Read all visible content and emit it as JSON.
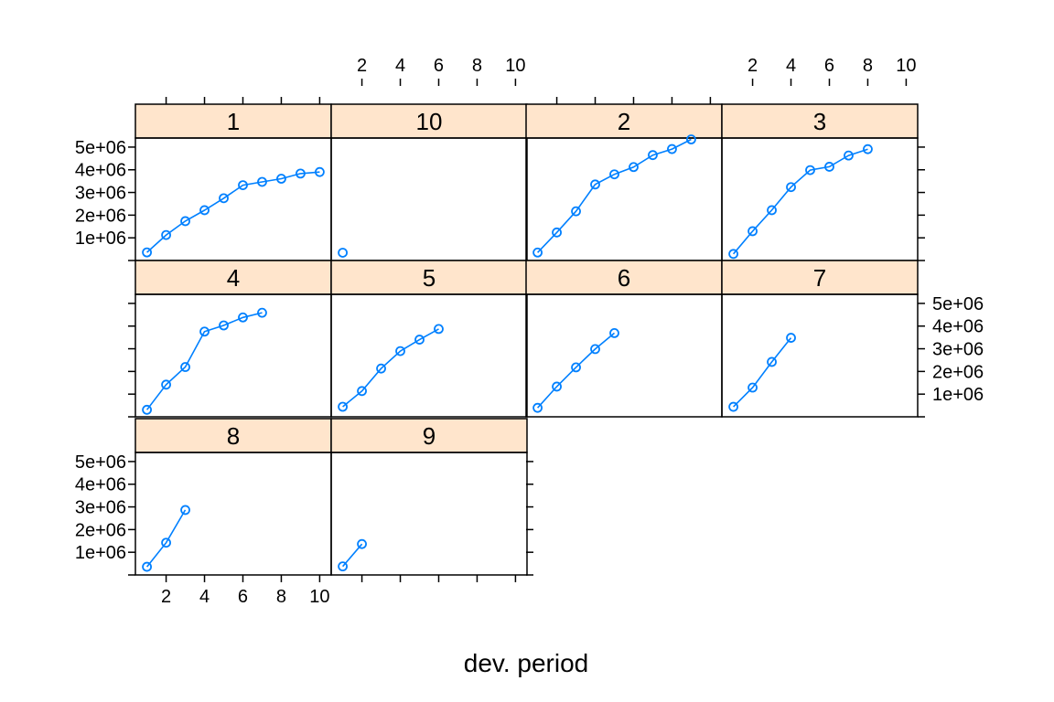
{
  "chart_data": {
    "type": "line",
    "xlabel": "dev. period",
    "ylabel": "",
    "xlim": [
      0.4,
      10.6
    ],
    "ylim": [
      0,
      5400000
    ],
    "x_ticks": [
      2,
      4,
      6,
      8,
      10
    ],
    "x_tick_labels": [
      "2",
      "4",
      "6",
      "8",
      "10"
    ],
    "y_ticks": [
      1000000,
      2000000,
      3000000,
      4000000,
      5000000
    ],
    "y_tick_labels": [
      "1e+06",
      "2e+06",
      "3e+06",
      "4e+06",
      "5e+06"
    ],
    "series_color": "#0080ff",
    "strip_color": "#ffe5cc",
    "marker": "open-circle",
    "panels": [
      {
        "label": "1",
        "x": [
          1,
          2,
          3,
          4,
          5,
          6,
          7,
          8,
          9,
          10
        ],
        "y": [
          357848,
          1124788,
          1735330,
          2218270,
          2745596,
          3319994,
          3466336,
          3606286,
          3833515,
          3901463
        ]
      },
      {
        "label": "10",
        "x": [
          1
        ],
        "y": [
          344014
        ]
      },
      {
        "label": "2",
        "x": [
          1,
          2,
          3,
          4,
          5,
          6,
          7,
          8,
          9
        ],
        "y": [
          352118,
          1236139,
          2170033,
          3353322,
          3799067,
          4120063,
          4647867,
          4914039,
          5339085
        ]
      },
      {
        "label": "3",
        "x": [
          1,
          2,
          3,
          4,
          5,
          6,
          7,
          8
        ],
        "y": [
          290507,
          1292306,
          2218525,
          3235179,
          3985995,
          4132918,
          4628910,
          4909315
        ]
      },
      {
        "label": "4",
        "x": [
          1,
          2,
          3,
          4,
          5,
          6,
          7
        ],
        "y": [
          310608,
          1418858,
          2195047,
          3757447,
          4029929,
          4381982,
          4588268
        ]
      },
      {
        "label": "5",
        "x": [
          1,
          2,
          3,
          4,
          5,
          6
        ],
        "y": [
          443160,
          1136350,
          2128333,
          2897821,
          3402672,
          3873311
        ]
      },
      {
        "label": "6",
        "x": [
          1,
          2,
          3,
          4,
          5
        ],
        "y": [
          396132,
          1333217,
          2180715,
          2985752,
          3691712
        ]
      },
      {
        "label": "7",
        "x": [
          1,
          2,
          3,
          4
        ],
        "y": [
          440832,
          1288463,
          2419861,
          3483130
        ]
      },
      {
        "label": "8",
        "x": [
          1,
          2,
          3
        ],
        "y": [
          359480,
          1421128,
          2864498
        ]
      },
      {
        "label": "9",
        "x": [
          1,
          2
        ],
        "y": [
          376686,
          1363294
        ]
      }
    ]
  }
}
